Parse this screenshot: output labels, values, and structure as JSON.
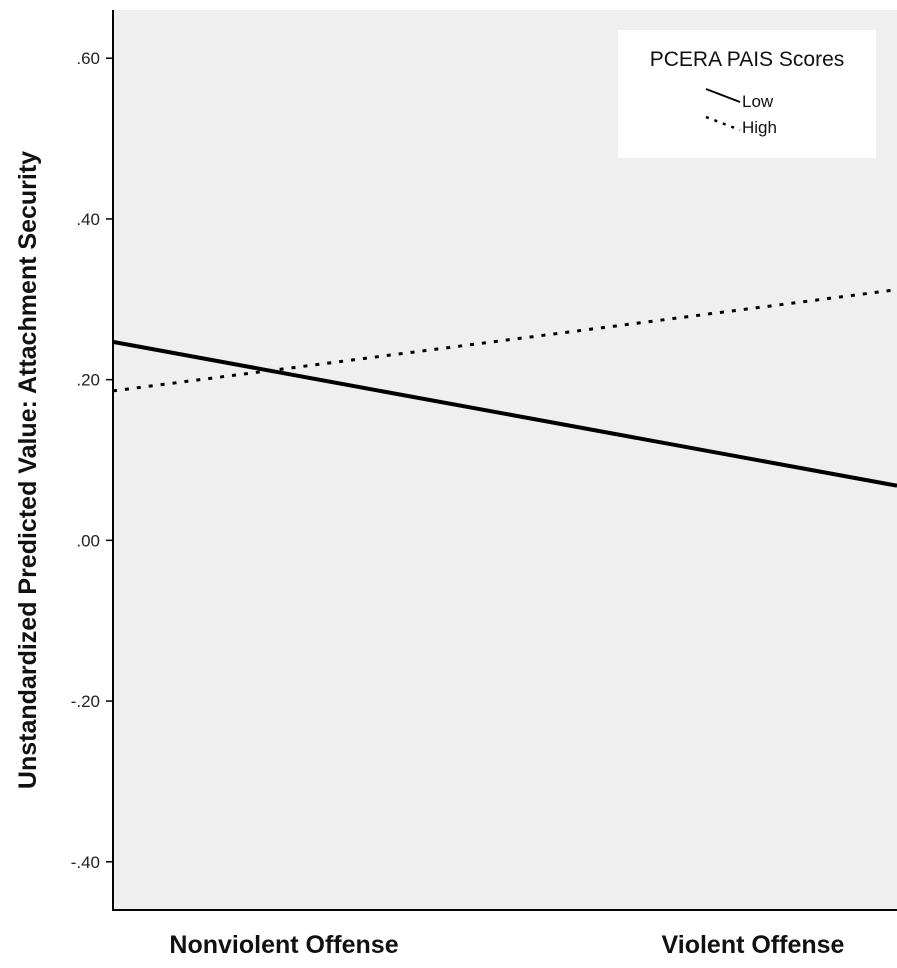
{
  "chart_data": {
    "type": "line",
    "title": "",
    "xlabel": "",
    "ylabel": "Unstandardized Predicted Value: Attachment Security",
    "categories": [
      "Nonviolent Offense",
      "Violent Offense"
    ],
    "ylim": [
      -0.46,
      0.66
    ],
    "yticks": [
      0.6,
      0.4,
      0.2,
      0.0,
      -0.2,
      -0.4
    ],
    "ytick_labels": [
      ".60",
      ".40",
      ".20",
      ".00",
      "-.20",
      "-.40"
    ],
    "grid": false,
    "legend": {
      "title": "PCERA PAIS Scores",
      "position": "top-right"
    },
    "series": [
      {
        "name": "Low",
        "style": "solid",
        "values": [
          0.247,
          0.068
        ],
        "color": "#000000"
      },
      {
        "name": "High",
        "style": "dotted",
        "values": [
          0.186,
          0.312
        ],
        "color": "#000000"
      }
    ],
    "colors": {
      "plot_background": "#efefef",
      "legend_background": "#ffffff",
      "line": "#000000"
    }
  }
}
